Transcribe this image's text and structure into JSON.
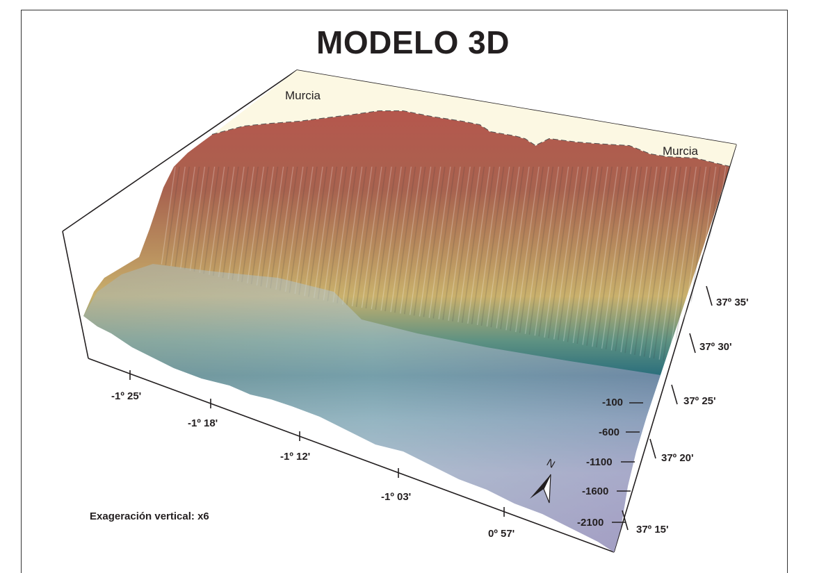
{
  "title": "MODELO 3D",
  "land_labels": [
    "Murcia",
    "Murcia"
  ],
  "longitude_ticks": [
    "-1º 25'",
    "-1º 18'",
    "-1º 12'",
    "-1º 03'",
    "0º 57'"
  ],
  "latitude_ticks": [
    "37º 35'",
    "37º 30'",
    "37º 25'",
    "37º 20'",
    "37º 15'"
  ],
  "depth_ticks": [
    "-100",
    "-600",
    "-1100",
    "-1600",
    "-2100"
  ],
  "north_arrow_label": "N",
  "vertical_exaggeration": "Exageración vertical: x6",
  "colors": {
    "land": "#fcf8e3",
    "shelf": "#b85c50",
    "upper_slope": "#c9a86a",
    "mid_slope": "#2f7f86",
    "deep": "#a9a2c6",
    "frame": "#231f20"
  },
  "icons": [
    "north-arrow-icon"
  ]
}
